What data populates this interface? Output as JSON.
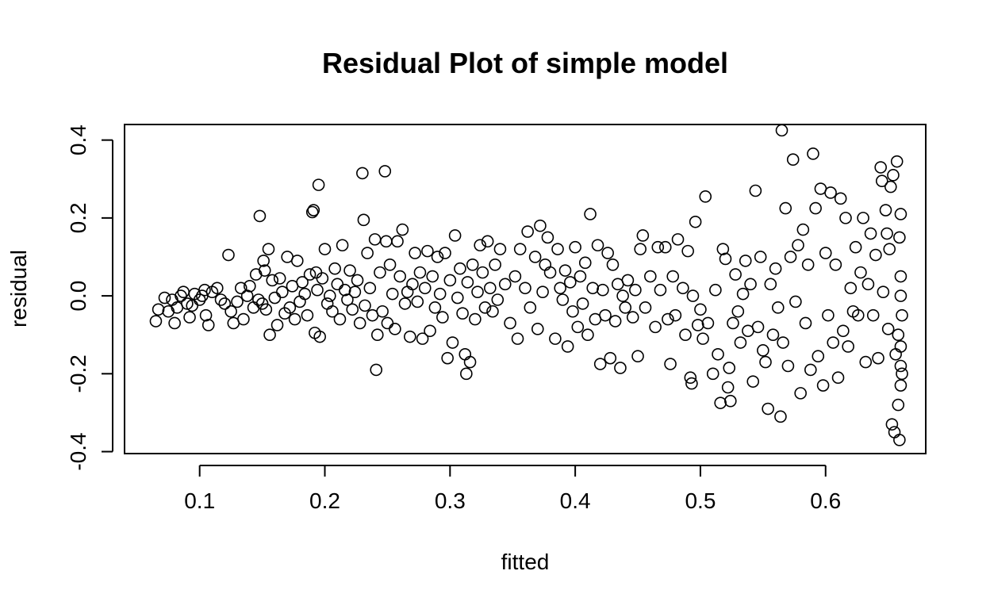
{
  "chart_data": {
    "type": "scatter",
    "title": "Residual Plot of simple model",
    "xlabel": "fitted",
    "ylabel": "residual",
    "xlim": [
      0.04,
      0.68
    ],
    "ylim": [
      -0.405,
      0.44
    ],
    "xticks": [
      0.1,
      0.2,
      0.3,
      0.4,
      0.5,
      0.6
    ],
    "xtick_labels": [
      "0.1",
      "0.2",
      "0.3",
      "0.4",
      "0.5",
      "0.6"
    ],
    "yticks": [
      -0.4,
      -0.2,
      0.0,
      0.2,
      0.4
    ],
    "ytick_labels": [
      "-0.4",
      "-0.2",
      "0.0",
      "0.2",
      "0.4"
    ],
    "grid": false,
    "marker": "open-circle",
    "marker_color": "#000000",
    "points": [
      [
        0.065,
        -0.065
      ],
      [
        0.067,
        -0.035
      ],
      [
        0.072,
        -0.005
      ],
      [
        0.075,
        -0.04
      ],
      [
        0.078,
        -0.01
      ],
      [
        0.08,
        -0.07
      ],
      [
        0.082,
        -0.03
      ],
      [
        0.085,
        0.0
      ],
      [
        0.087,
        0.01
      ],
      [
        0.09,
        -0.02
      ],
      [
        0.092,
        -0.055
      ],
      [
        0.094,
        -0.025
      ],
      [
        0.096,
        0.005
      ],
      [
        0.1,
        -0.01
      ],
      [
        0.102,
        0.0
      ],
      [
        0.104,
        0.015
      ],
      [
        0.105,
        -0.05
      ],
      [
        0.107,
        -0.075
      ],
      [
        0.11,
        0.01
      ],
      [
        0.114,
        0.02
      ],
      [
        0.117,
        -0.01
      ],
      [
        0.12,
        -0.02
      ],
      [
        0.123,
        0.105
      ],
      [
        0.125,
        -0.04
      ],
      [
        0.127,
        -0.07
      ],
      [
        0.13,
        -0.015
      ],
      [
        0.133,
        0.02
      ],
      [
        0.135,
        -0.06
      ],
      [
        0.138,
        0.0
      ],
      [
        0.14,
        0.025
      ],
      [
        0.143,
        -0.03
      ],
      [
        0.145,
        0.055
      ],
      [
        0.147,
        -0.01
      ],
      [
        0.148,
        0.205
      ],
      [
        0.15,
        -0.02
      ],
      [
        0.151,
        0.09
      ],
      [
        0.152,
        0.065
      ],
      [
        0.153,
        -0.035
      ],
      [
        0.155,
        0.12
      ],
      [
        0.156,
        -0.1
      ],
      [
        0.158,
        0.04
      ],
      [
        0.16,
        -0.005
      ],
      [
        0.162,
        -0.075
      ],
      [
        0.164,
        0.045
      ],
      [
        0.166,
        0.01
      ],
      [
        0.168,
        -0.045
      ],
      [
        0.17,
        0.1
      ],
      [
        0.172,
        -0.03
      ],
      [
        0.174,
        0.025
      ],
      [
        0.176,
        -0.06
      ],
      [
        0.178,
        0.09
      ],
      [
        0.18,
        -0.015
      ],
      [
        0.182,
        0.035
      ],
      [
        0.184,
        0.005
      ],
      [
        0.186,
        -0.05
      ],
      [
        0.188,
        0.055
      ],
      [
        0.19,
        0.215
      ],
      [
        0.191,
        0.22
      ],
      [
        0.192,
        -0.095
      ],
      [
        0.193,
        0.06
      ],
      [
        0.194,
        0.015
      ],
      [
        0.195,
        0.285
      ],
      [
        0.196,
        -0.105
      ],
      [
        0.198,
        0.045
      ],
      [
        0.2,
        0.12
      ],
      [
        0.202,
        -0.02
      ],
      [
        0.204,
        0.0
      ],
      [
        0.206,
        -0.04
      ],
      [
        0.208,
        0.07
      ],
      [
        0.21,
        0.03
      ],
      [
        0.212,
        -0.06
      ],
      [
        0.214,
        0.13
      ],
      [
        0.216,
        0.015
      ],
      [
        0.218,
        -0.01
      ],
      [
        0.22,
        0.065
      ],
      [
        0.222,
        -0.035
      ],
      [
        0.224,
        0.01
      ],
      [
        0.226,
        0.04
      ],
      [
        0.228,
        -0.07
      ],
      [
        0.23,
        0.315
      ],
      [
        0.231,
        0.195
      ],
      [
        0.232,
        -0.025
      ],
      [
        0.234,
        0.11
      ],
      [
        0.236,
        0.02
      ],
      [
        0.238,
        -0.05
      ],
      [
        0.24,
        0.145
      ],
      [
        0.241,
        -0.19
      ],
      [
        0.242,
        -0.1
      ],
      [
        0.244,
        0.06
      ],
      [
        0.246,
        -0.04
      ],
      [
        0.248,
        0.32
      ],
      [
        0.249,
        0.14
      ],
      [
        0.25,
        -0.07
      ],
      [
        0.252,
        0.08
      ],
      [
        0.254,
        0.005
      ],
      [
        0.256,
        -0.085
      ],
      [
        0.258,
        0.14
      ],
      [
        0.26,
        0.05
      ],
      [
        0.262,
        0.17
      ],
      [
        0.264,
        -0.02
      ],
      [
        0.266,
        0.01
      ],
      [
        0.268,
        -0.105
      ],
      [
        0.27,
        0.03
      ],
      [
        0.272,
        0.11
      ],
      [
        0.274,
        -0.015
      ],
      [
        0.276,
        0.06
      ],
      [
        0.278,
        -0.11
      ],
      [
        0.28,
        0.02
      ],
      [
        0.282,
        0.115
      ],
      [
        0.284,
        -0.09
      ],
      [
        0.286,
        0.05
      ],
      [
        0.288,
        -0.03
      ],
      [
        0.29,
        0.1
      ],
      [
        0.292,
        0.005
      ],
      [
        0.294,
        -0.055
      ],
      [
        0.296,
        0.11
      ],
      [
        0.298,
        -0.16
      ],
      [
        0.3,
        0.04
      ],
      [
        0.302,
        -0.12
      ],
      [
        0.304,
        0.155
      ],
      [
        0.306,
        -0.005
      ],
      [
        0.308,
        0.07
      ],
      [
        0.31,
        -0.045
      ],
      [
        0.312,
        -0.15
      ],
      [
        0.313,
        -0.2
      ],
      [
        0.314,
        0.035
      ],
      [
        0.316,
        -0.17
      ],
      [
        0.318,
        0.08
      ],
      [
        0.32,
        -0.06
      ],
      [
        0.322,
        0.01
      ],
      [
        0.324,
        0.13
      ],
      [
        0.326,
        0.06
      ],
      [
        0.328,
        -0.03
      ],
      [
        0.33,
        0.14
      ],
      [
        0.332,
        0.02
      ],
      [
        0.334,
        -0.04
      ],
      [
        0.336,
        0.08
      ],
      [
        0.338,
        -0.01
      ],
      [
        0.34,
        0.12
      ],
      [
        0.344,
        0.03
      ],
      [
        0.348,
        -0.07
      ],
      [
        0.352,
        0.05
      ],
      [
        0.354,
        -0.11
      ],
      [
        0.356,
        0.12
      ],
      [
        0.36,
        0.02
      ],
      [
        0.362,
        0.165
      ],
      [
        0.364,
        -0.03
      ],
      [
        0.368,
        0.1
      ],
      [
        0.37,
        -0.085
      ],
      [
        0.372,
        0.18
      ],
      [
        0.374,
        0.01
      ],
      [
        0.376,
        0.08
      ],
      [
        0.378,
        0.15
      ],
      [
        0.38,
        0.06
      ],
      [
        0.384,
        -0.11
      ],
      [
        0.386,
        0.12
      ],
      [
        0.388,
        0.02
      ],
      [
        0.39,
        -0.01
      ],
      [
        0.392,
        0.065
      ],
      [
        0.394,
        -0.13
      ],
      [
        0.396,
        0.035
      ],
      [
        0.398,
        -0.04
      ],
      [
        0.4,
        0.125
      ],
      [
        0.402,
        -0.08
      ],
      [
        0.404,
        0.05
      ],
      [
        0.406,
        -0.02
      ],
      [
        0.408,
        0.085
      ],
      [
        0.41,
        -0.1
      ],
      [
        0.412,
        0.21
      ],
      [
        0.414,
        0.02
      ],
      [
        0.416,
        -0.06
      ],
      [
        0.418,
        0.13
      ],
      [
        0.42,
        -0.175
      ],
      [
        0.422,
        0.015
      ],
      [
        0.424,
        -0.05
      ],
      [
        0.426,
        0.11
      ],
      [
        0.428,
        -0.16
      ],
      [
        0.43,
        0.08
      ],
      [
        0.432,
        -0.065
      ],
      [
        0.434,
        0.03
      ],
      [
        0.436,
        -0.185
      ],
      [
        0.438,
        0.0
      ],
      [
        0.44,
        -0.03
      ],
      [
        0.442,
        0.04
      ],
      [
        0.446,
        -0.055
      ],
      [
        0.448,
        0.015
      ],
      [
        0.45,
        -0.155
      ],
      [
        0.452,
        0.12
      ],
      [
        0.454,
        0.155
      ],
      [
        0.456,
        -0.03
      ],
      [
        0.46,
        0.05
      ],
      [
        0.464,
        -0.08
      ],
      [
        0.466,
        0.125
      ],
      [
        0.468,
        0.015
      ],
      [
        0.472,
        0.125
      ],
      [
        0.474,
        -0.06
      ],
      [
        0.476,
        -0.175
      ],
      [
        0.478,
        0.05
      ],
      [
        0.48,
        -0.05
      ],
      [
        0.482,
        0.145
      ],
      [
        0.486,
        0.02
      ],
      [
        0.488,
        -0.1
      ],
      [
        0.49,
        0.115
      ],
      [
        0.492,
        -0.21
      ],
      [
        0.493,
        -0.225
      ],
      [
        0.494,
        0.0
      ],
      [
        0.496,
        0.19
      ],
      [
        0.498,
        -0.075
      ],
      [
        0.5,
        -0.035
      ],
      [
        0.502,
        -0.11
      ],
      [
        0.504,
        0.255
      ],
      [
        0.506,
        -0.07
      ],
      [
        0.51,
        -0.2
      ],
      [
        0.512,
        0.015
      ],
      [
        0.514,
        -0.15
      ],
      [
        0.516,
        -0.275
      ],
      [
        0.518,
        0.12
      ],
      [
        0.52,
        0.095
      ],
      [
        0.522,
        -0.235
      ],
      [
        0.523,
        -0.185
      ],
      [
        0.524,
        -0.27
      ],
      [
        0.526,
        -0.07
      ],
      [
        0.528,
        0.055
      ],
      [
        0.53,
        -0.04
      ],
      [
        0.532,
        -0.12
      ],
      [
        0.534,
        0.005
      ],
      [
        0.536,
        0.09
      ],
      [
        0.538,
        -0.09
      ],
      [
        0.54,
        0.03
      ],
      [
        0.542,
        -0.22
      ],
      [
        0.544,
        0.27
      ],
      [
        0.546,
        -0.08
      ],
      [
        0.548,
        0.1
      ],
      [
        0.55,
        -0.14
      ],
      [
        0.552,
        -0.17
      ],
      [
        0.554,
        -0.29
      ],
      [
        0.556,
        0.03
      ],
      [
        0.558,
        -0.1
      ],
      [
        0.56,
        0.07
      ],
      [
        0.562,
        -0.03
      ],
      [
        0.564,
        -0.31
      ],
      [
        0.565,
        0.425
      ],
      [
        0.566,
        -0.12
      ],
      [
        0.568,
        0.225
      ],
      [
        0.57,
        -0.18
      ],
      [
        0.572,
        0.1
      ],
      [
        0.574,
        0.35
      ],
      [
        0.576,
        -0.015
      ],
      [
        0.578,
        0.13
      ],
      [
        0.58,
        -0.25
      ],
      [
        0.582,
        0.17
      ],
      [
        0.584,
        -0.07
      ],
      [
        0.586,
        0.08
      ],
      [
        0.588,
        -0.19
      ],
      [
        0.59,
        0.365
      ],
      [
        0.592,
        0.225
      ],
      [
        0.594,
        -0.155
      ],
      [
        0.596,
        0.275
      ],
      [
        0.598,
        -0.23
      ],
      [
        0.6,
        0.11
      ],
      [
        0.602,
        -0.05
      ],
      [
        0.604,
        0.265
      ],
      [
        0.606,
        -0.12
      ],
      [
        0.608,
        0.08
      ],
      [
        0.61,
        -0.21
      ],
      [
        0.612,
        0.25
      ],
      [
        0.614,
        -0.09
      ],
      [
        0.616,
        0.2
      ],
      [
        0.618,
        -0.13
      ],
      [
        0.62,
        0.02
      ],
      [
        0.622,
        -0.04
      ],
      [
        0.624,
        0.125
      ],
      [
        0.626,
        -0.05
      ],
      [
        0.628,
        0.06
      ],
      [
        0.63,
        0.2
      ],
      [
        0.632,
        -0.17
      ],
      [
        0.634,
        0.03
      ],
      [
        0.636,
        0.16
      ],
      [
        0.638,
        -0.05
      ],
      [
        0.64,
        0.105
      ],
      [
        0.642,
        -0.16
      ],
      [
        0.644,
        0.33
      ],
      [
        0.645,
        0.295
      ],
      [
        0.646,
        0.01
      ],
      [
        0.648,
        0.22
      ],
      [
        0.649,
        0.16
      ],
      [
        0.65,
        -0.085
      ],
      [
        0.651,
        0.12
      ],
      [
        0.652,
        0.28
      ],
      [
        0.653,
        -0.33
      ],
      [
        0.654,
        0.31
      ],
      [
        0.655,
        -0.35
      ],
      [
        0.656,
        -0.15
      ],
      [
        0.657,
        0.345
      ],
      [
        0.658,
        -0.28
      ],
      [
        0.659,
        -0.37
      ],
      [
        0.66,
        -0.18
      ],
      [
        0.66,
        -0.23
      ],
      [
        0.66,
        -0.13
      ],
      [
        0.66,
        0.0
      ],
      [
        0.66,
        0.21
      ],
      [
        0.66,
        0.05
      ],
      [
        0.661,
        -0.2
      ],
      [
        0.661,
        -0.05
      ],
      [
        0.659,
        0.15
      ],
      [
        0.658,
        -0.1
      ]
    ]
  }
}
